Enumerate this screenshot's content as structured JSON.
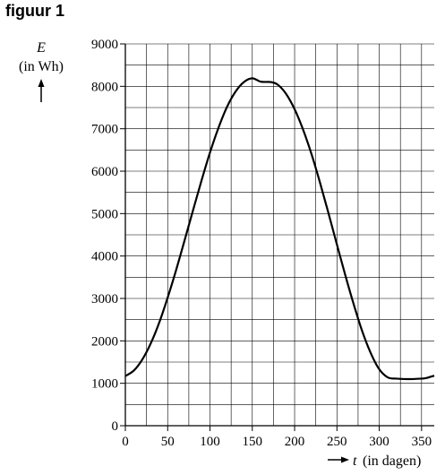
{
  "figure_label": "figuur 1",
  "chart_data": {
    "type": "line",
    "title": "",
    "ylabel_var": "E",
    "ylabel_unit": "(in Wh)",
    "xlabel_var": "t",
    "xlabel_unit": "(in dagen)",
    "xlim": [
      0,
      365
    ],
    "ylim": [
      0,
      9000
    ],
    "x_ticks": [
      0,
      50,
      100,
      150,
      200,
      250,
      300,
      350
    ],
    "x_tick_labels": [
      "0",
      "50",
      "100",
      "150",
      "200",
      "250",
      "300",
      "350"
    ],
    "y_ticks": [
      0,
      1000,
      2000,
      3000,
      4000,
      5000,
      6000,
      7000,
      8000,
      9000
    ],
    "y_tick_labels": [
      "0",
      "1000",
      "2000",
      "3000",
      "4000",
      "5000",
      "6000",
      "7000",
      "8000",
      "9000"
    ],
    "grid": true,
    "line_color": "#000000",
    "series": [
      {
        "x": [
          0,
          10,
          20,
          30,
          40,
          50,
          60,
          70,
          80,
          90,
          100,
          110,
          120,
          130,
          140,
          150,
          160,
          172,
          180,
          190,
          200,
          210,
          220,
          230,
          240,
          250,
          260,
          270,
          280,
          290,
          300,
          310,
          320,
          330,
          340,
          350,
          355,
          365
        ],
        "y": [
          1170,
          1300,
          1560,
          1940,
          2430,
          3020,
          3670,
          4370,
          5080,
          5780,
          6440,
          7020,
          7510,
          7870,
          8100,
          8190,
          8110,
          8100,
          8040,
          7820,
          7460,
          6980,
          6400,
          5730,
          5010,
          4270,
          3540,
          2850,
          2220,
          1710,
          1330,
          1140,
          1110,
          1100,
          1100,
          1110,
          1120,
          1180
        ]
      }
    ]
  }
}
